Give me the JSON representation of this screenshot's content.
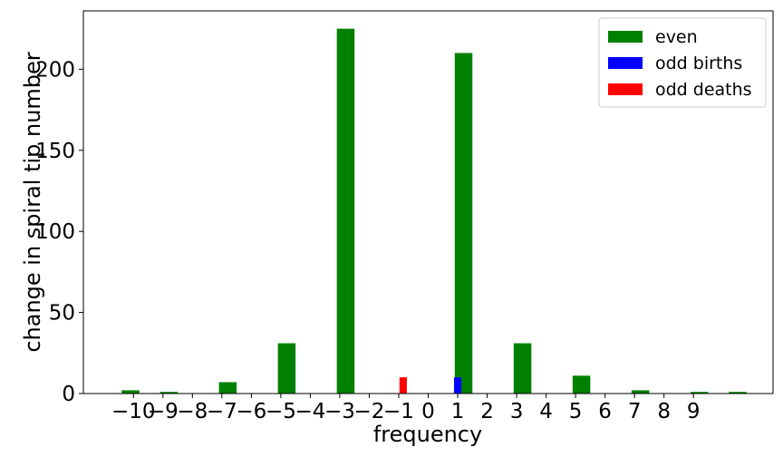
{
  "chart_data": {
    "type": "bar",
    "xlabel": "frequency",
    "ylabel": "change in spiral tip number",
    "xlim": [
      -11.7,
      11.7
    ],
    "ylim": [
      0,
      236
    ],
    "x_ticks": [
      -10,
      -9,
      -8,
      -7,
      -6,
      -5,
      -4,
      -3,
      -2,
      -1,
      0,
      1,
      2,
      3,
      4,
      5,
      6,
      7,
      8,
      9
    ],
    "x_tick_labels": [
      "−10",
      "−9",
      "−8",
      "−7",
      "−6",
      "−5",
      "−4",
      "−3",
      "−2",
      "−1",
      "0",
      "1",
      "2",
      "3",
      "4",
      "5",
      "6",
      "7",
      "8",
      "9"
    ],
    "y_ticks": [
      0,
      50,
      100,
      150,
      200
    ],
    "y_tick_labels": [
      "0",
      "50",
      "100",
      "150",
      "200"
    ],
    "bar_width": 0.6,
    "legend_position": "top-right",
    "grid": false,
    "series": [
      {
        "name": "even",
        "color": "#008000",
        "x": [
          -10.1,
          -8.8,
          -6.8,
          -4.8,
          -2.8,
          -0.8,
          1.2,
          3.2,
          5.2,
          7.2,
          9.2,
          10.5
        ],
        "values": [
          2,
          1,
          7,
          31,
          225,
          0,
          210,
          31,
          11,
          2,
          1,
          1
        ]
      },
      {
        "name": "odd births",
        "color": "#0000ff",
        "x": [
          1.0
        ],
        "values": [
          10
        ],
        "width": 0.25
      },
      {
        "name": "odd deaths",
        "color": "#ff0000",
        "x": [
          -0.85
        ],
        "values": [
          10
        ],
        "width": 0.25
      }
    ]
  }
}
